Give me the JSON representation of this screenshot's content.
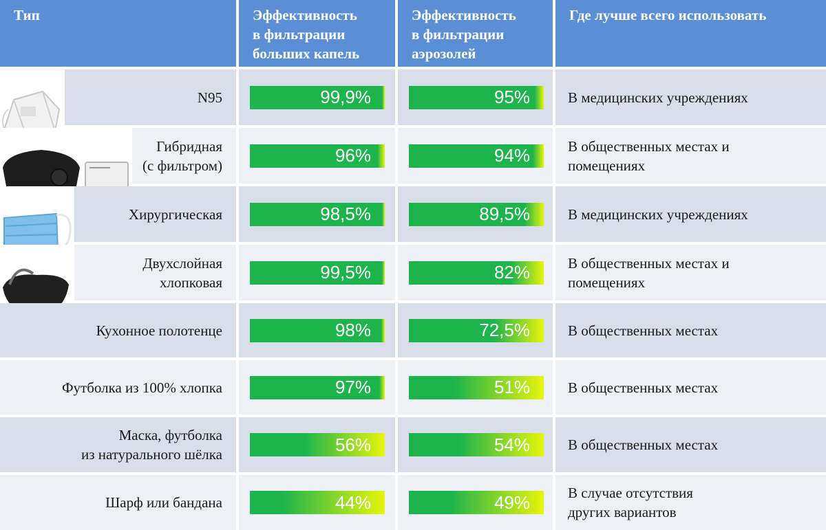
{
  "header": {
    "type": "Тип",
    "big_drops": "Эффективность\nв фильтрации\nбольших капель",
    "aerosols": "Эффективность\nв фильтрации\nаэрозолей",
    "use": "Где лучше всего использовать"
  },
  "colors": {
    "header_bg": "#5b8fd5",
    "bar_green": "#1db44b",
    "bar_yellow": "#e8f50c"
  },
  "rows": [
    {
      "type": "N95",
      "big": "99,9%",
      "big_value": 99.9,
      "aer": "95%",
      "aer_value": 95,
      "use": "В медицинских учреждениях",
      "image": "n95-respirator-icon"
    },
    {
      "type": "Гибридная\n(с фильтром)",
      "big": "96%",
      "big_value": 96,
      "aer": "94%",
      "aer_value": 94,
      "use": "В общественных местах и\nпомещениях",
      "image": "hybrid-mask-icon"
    },
    {
      "type": "Хирургическая",
      "big": "98,5%",
      "big_value": 98.5,
      "aer": "89,5%",
      "aer_value": 89.5,
      "use": "В медицинских учреждениях",
      "image": "surgical-mask-icon"
    },
    {
      "type": "Двухслойная\nхлопковая",
      "big": "99,5%",
      "big_value": 99.5,
      "aer": "82%",
      "aer_value": 82,
      "use": "В общественных местах и\nпомещениях",
      "image": "cotton-mask-icon"
    },
    {
      "type": "Кухонное полотенце",
      "big": "98%",
      "big_value": 98,
      "aer": "72,5%",
      "aer_value": 72.5,
      "use": "В общественных местах"
    },
    {
      "type": "Футболка из 100% хлопка",
      "big": "97%",
      "big_value": 97,
      "aer": "51%",
      "aer_value": 51,
      "use": "В общественных местах"
    },
    {
      "type": "Маска, футболка\nиз натурального шёлка",
      "big": "56%",
      "big_value": 56,
      "aer": "54%",
      "aer_value": 54,
      "use": "В общественных местах"
    },
    {
      "type": "Шарф или бандана",
      "big": "44%",
      "big_value": 44,
      "aer": "49%",
      "aer_value": 49,
      "use": "В случае отсутствия\nдругих вариантов"
    }
  ]
}
